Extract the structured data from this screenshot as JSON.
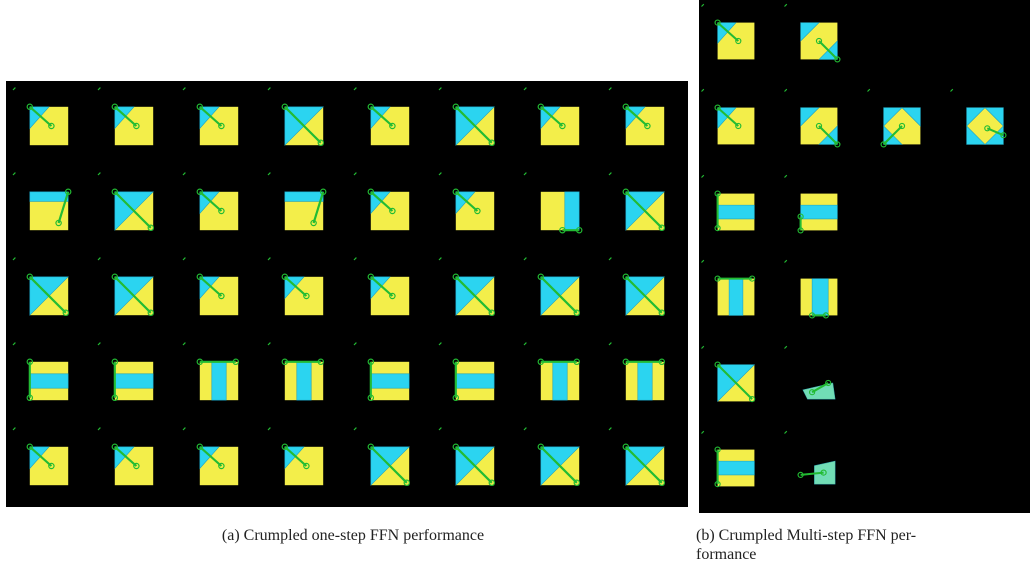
{
  "figure": {
    "panel_a": {
      "caption": "(a) Crumpled one-step FFN performance"
    },
    "panel_b": {
      "caption_line1": "(b) Crumpled Multi-step FFN per-",
      "caption_line2": "formance"
    }
  },
  "colors": {
    "background": "#000000",
    "cloth": "#f3ee4a",
    "folded": "#2bd4f0",
    "arrow": "#22bb33"
  },
  "grid_a": {
    "cols": 8,
    "rows": [
      [
        "corner-fold",
        "corner-fold",
        "corner-fold",
        "diagonal-fold",
        "corner-fold",
        "diagonal-fold",
        "corner-fold",
        "corner-fold"
      ],
      [
        "edge-fold",
        "diagonal-fold",
        "corner-fold",
        "edge-fold",
        "corner-fold",
        "corner-fold",
        "side-fold",
        "diagonal-fold"
      ],
      [
        "diagonal-fold",
        "diagonal-fold",
        "corner-fold",
        "corner-fold",
        "corner-fold",
        "diagonal-fold",
        "diagonal-fold",
        "diagonal-fold"
      ],
      [
        "half-fold-horizontal",
        "half-fold-horizontal",
        "half-fold-vertical",
        "half-fold-vertical",
        "half-fold-horizontal",
        "half-fold-horizontal",
        "half-fold-vertical",
        "half-fold-vertical"
      ],
      [
        "corner-fold",
        "corner-fold",
        "corner-fold",
        "corner-fold",
        "diagonal-fold",
        "diagonal-fold",
        "diagonal-fold",
        "diagonal-fold"
      ]
    ]
  },
  "grid_b": {
    "rows": [
      [
        "corner-fold",
        "two-corner-fold"
      ],
      [
        "corner-fold",
        "two-corner-fold",
        "three-corner-fold",
        "four-corner-fold"
      ],
      [
        "half-fold-horizontal",
        "double-fold-horizontal"
      ],
      [
        "half-fold-vertical",
        "double-fold-vertical"
      ],
      [
        "diagonal-fold",
        "double-diagonal-fold"
      ],
      [
        "half-fold-horizontal",
        "double-fold-crumpled"
      ]
    ]
  }
}
